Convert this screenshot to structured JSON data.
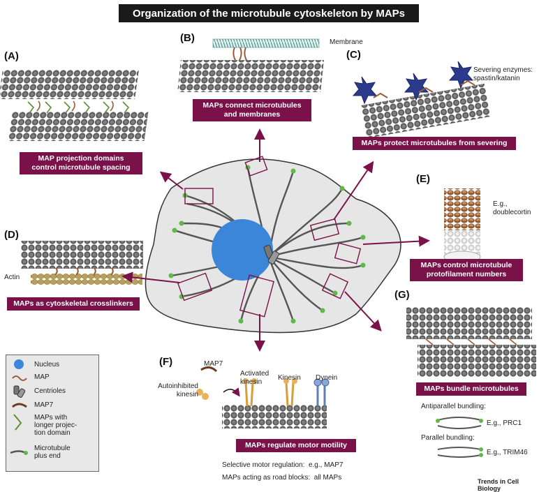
{
  "title": "Organization of the microtubule cytoskeleton by MAPs",
  "panels": {
    "A": {
      "letter": "(A)",
      "caption_line1": "MAP projection domains",
      "caption_line2": "control microtubule spacing"
    },
    "B": {
      "letter": "(B)",
      "label": "Membrane",
      "caption_line1": "MAPs connect microtubules",
      "caption_line2": "and membranes"
    },
    "C": {
      "letter": "(C)",
      "label_line1": "Severing enzymes:",
      "label_line2": "spastin/katanin",
      "caption": "MAPs protect microtubules from severing"
    },
    "D": {
      "letter": "(D)",
      "label": "Actin",
      "caption": "MAPs as cytoskeletal crosslinkers"
    },
    "E": {
      "letter": "(E)",
      "label_line1": "E.g.,",
      "label_line2": "doublecortin",
      "caption_line1": "MAPs control microtubule",
      "caption_line2": "protofilament numbers"
    },
    "F": {
      "letter": "(F)",
      "map7": "MAP7",
      "autoinhibited_line1": "Autoinhibited",
      "autoinhibited_line2": "kinesin",
      "activated_line1": "Activated",
      "activated_line2": "kinesin",
      "kinesin": "Kinesin",
      "dynein": "Dynein",
      "caption": "MAPs regulate motor motility",
      "note1_label": "Selective motor regulation:",
      "note1_value": "e.g., MAP7",
      "note2_label": "MAPs acting as road blocks:",
      "note2_value": "all MAPs"
    },
    "G": {
      "letter": "(G)",
      "caption": "MAPs bundle microtubules",
      "antiparallel": "Antiparallel bundling:",
      "antiparallel_eg": "E.g., PRC1",
      "parallel": "Parallel bundling:",
      "parallel_eg": "E.g., TRIM46"
    }
  },
  "legend": {
    "items": [
      {
        "label": "Nucleus",
        "icon": "nucleus-icon"
      },
      {
        "label": "MAP",
        "icon": "map-icon"
      },
      {
        "label": "Centrioles",
        "icon": "centriole-icon"
      },
      {
        "label": "MAP7",
        "icon": "map7-icon"
      },
      {
        "label_line1": "MAPs with",
        "label_line2": "longer projec-",
        "label_line3": "tion domain",
        "icon": "long-map-icon"
      },
      {
        "label_line1": "Microtubule",
        "label_line2": "plus end",
        "icon": "plus-end-icon"
      }
    ]
  },
  "footer": "Trends in Cell Biology",
  "colors": {
    "caption_bg": "#7a1148",
    "arrow": "#7a1148",
    "nucleus": "#3b86d8",
    "cell": "#e6e6e6",
    "plus_end": "#5fb848",
    "map": "#9b5a37"
  }
}
